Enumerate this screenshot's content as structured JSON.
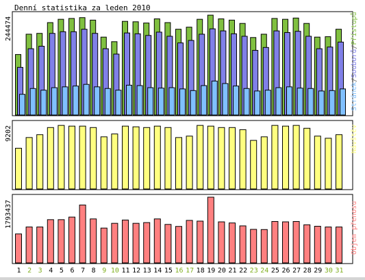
{
  "chart_data": [
    {
      "type": "bar",
      "title": "Denní statistika za leden 2010",
      "ylabel_max": "244474",
      "ylim": [
        0,
        244474
      ],
      "categories": [
        "1",
        "2",
        "3",
        "4",
        "5",
        "6",
        "7",
        "8",
        "9",
        "10",
        "11",
        "12",
        "13",
        "14",
        "15",
        "16",
        "17",
        "18",
        "19",
        "20",
        "21",
        "22",
        "23",
        "24",
        "25",
        "26",
        "27",
        "28",
        "29",
        "30",
        "31"
      ],
      "series": [
        {
          "name": "Přístupů",
          "color": "#80c040",
          "values": [
            146000,
            195000,
            197000,
            223000,
            231000,
            233000,
            235000,
            229000,
            188000,
            177000,
            226000,
            225000,
            222000,
            232000,
            223000,
            207000,
            212000,
            231000,
            241000,
            232000,
            229000,
            221000,
            187000,
            195000,
            233000,
            231000,
            234000,
            221000,
            188000,
            189000,
            207000
          ]
        },
        {
          "name": "Souborů",
          "color": "#8080e8",
          "values": [
            115000,
            160000,
            166000,
            197000,
            201000,
            201000,
            207000,
            197000,
            160000,
            147000,
            198000,
            196000,
            192000,
            200000,
            190000,
            174000,
            180000,
            195000,
            208000,
            203000,
            196000,
            190000,
            156000,
            163000,
            203000,
            199000,
            202000,
            190000,
            160000,
            164000,
            176000
          ]
        },
        {
          "name": "Stránek",
          "color": "#80c0ff",
          "values": [
            50000,
            64000,
            60000,
            66000,
            68000,
            70000,
            74000,
            68000,
            64000,
            60000,
            72000,
            71000,
            66000,
            65000,
            66000,
            63000,
            59000,
            71000,
            82000,
            76000,
            70000,
            64000,
            58000,
            60000,
            66000,
            68000,
            65000,
            64000,
            58000,
            59000,
            63000
          ]
        }
      ]
    },
    {
      "type": "bar",
      "ylabel_max": "9202",
      "ylim": [
        0,
        9202
      ],
      "series": [
        {
          "name": "Návštěv",
          "color": "#ffff80",
          "values": [
            5700,
            7200,
            7600,
            8600,
            8900,
            8800,
            8800,
            8600,
            7300,
            7700,
            8800,
            8700,
            8600,
            8800,
            8600,
            7200,
            7400,
            8900,
            8800,
            8600,
            8600,
            8300,
            6800,
            7300,
            8900,
            8800,
            8900,
            8500,
            7400,
            7100,
            7600
          ]
        }
      ]
    },
    {
      "type": "bar",
      "ylabel_max": "1793437",
      "ylim": [
        0,
        1793437
      ],
      "series": [
        {
          "name": "Objem přenosu",
          "color": "#ff8080",
          "values": [
            790000,
            980000,
            980000,
            1180000,
            1180000,
            1250000,
            1580000,
            1200000,
            950000,
            1080000,
            1170000,
            1080000,
            1100000,
            1200000,
            1050000,
            995000,
            1160000,
            1140000,
            1793437,
            1120000,
            1090000,
            1010000,
            915000,
            910000,
            1130000,
            1120000,
            1130000,
            1040000,
            1000000,
            980000,
            980000
          ]
        }
      ]
    }
  ],
  "legend_parts": [
    "Stránek",
    "/",
    "Souborů",
    "/",
    "Přístupů"
  ],
  "legend_colors": [
    "#80c0ff",
    "#606060",
    "#8080e8",
    "#606060",
    "#80c040"
  ],
  "legend_visits": "Návštěv",
  "legend_transfer": "Objem přenosu",
  "x_label_colors": {
    "weekday": "#000000",
    "weekend": "#80b020"
  },
  "weekend_days": [
    2,
    3,
    9,
    10,
    16,
    17,
    23,
    24,
    30,
    31
  ]
}
